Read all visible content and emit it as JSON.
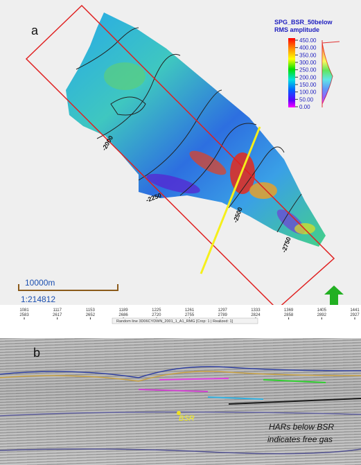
{
  "panel_a": {
    "label": "a",
    "legend": {
      "title": "SPG_BSR_50below",
      "subtitle": "RMS amplitude",
      "values": [
        "450.00",
        "400.00",
        "350.00",
        "300.00",
        "250.00",
        "200.00",
        "150.00",
        "100.00",
        "50.00",
        "0.00"
      ]
    },
    "contours": [
      "-2000",
      "-2250",
      "-2500",
      "-2750"
    ],
    "scale": {
      "distance": "10000m",
      "ratio": "1:214812"
    }
  },
  "panel_b": {
    "label": "b",
    "traces": [
      {
        "inline": "1081",
        "xline": "2583"
      },
      {
        "inline": "1117",
        "xline": "2617"
      },
      {
        "inline": "1153",
        "xline": "2652"
      },
      {
        "inline": "1189",
        "xline": "2686"
      },
      {
        "inline": "1225",
        "xline": "2720"
      },
      {
        "inline": "1261",
        "xline": "2755"
      },
      {
        "inline": "1297",
        "xline": "2789"
      },
      {
        "inline": "1333",
        "xline": "2824"
      },
      {
        "inline": "1369",
        "xline": "2858"
      },
      {
        "inline": "1405",
        "xline": "2892"
      },
      {
        "inline": "1441",
        "xline": "2927"
      }
    ],
    "line_name": "Random line 3D06CYDWN_2001_1_A1_RMG [Crop: 1 | Realized: 1]",
    "bsr_label": "BSR",
    "annotation": [
      "HARs below BSR",
      "indicates free gas"
    ]
  }
}
